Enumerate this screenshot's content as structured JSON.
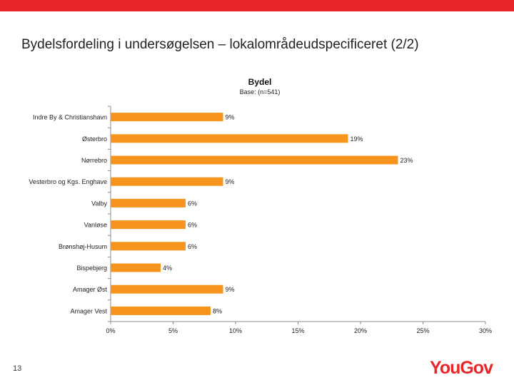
{
  "slide": {
    "title": "Bydelsfordeling i undersøgelsen – lokalområdeudspecificeret (2/2)",
    "page_number": "13",
    "logo_text": "YouGov",
    "accent_color": "#e8272b"
  },
  "chart_data": {
    "type": "bar",
    "orientation": "horizontal",
    "title": "Bydel",
    "subtitle": "Base: (n=541)",
    "categories": [
      "Indre By & Christianshavn",
      "Østerbro",
      "Nørrebro",
      "Vesterbro og Kgs. Enghave",
      "Valby",
      "Vanløse",
      "Brønshøj-Husum",
      "Bispebjerg",
      "Amager Øst",
      "Amager Vest"
    ],
    "values": [
      9,
      19,
      23,
      9,
      6,
      6,
      6,
      4,
      9,
      8
    ],
    "value_labels": [
      "9%",
      "19%",
      "23%",
      "9%",
      "6%",
      "6%",
      "6%",
      "4%",
      "9%",
      "8%"
    ],
    "xlim": [
      0,
      30
    ],
    "xticks": [
      0,
      5,
      10,
      15,
      20,
      25,
      30
    ],
    "xtick_labels": [
      "0%",
      "5%",
      "10%",
      "15%",
      "20%",
      "25%",
      "30%"
    ],
    "bar_color": "#f7941d",
    "grid": false,
    "legend": "none"
  }
}
